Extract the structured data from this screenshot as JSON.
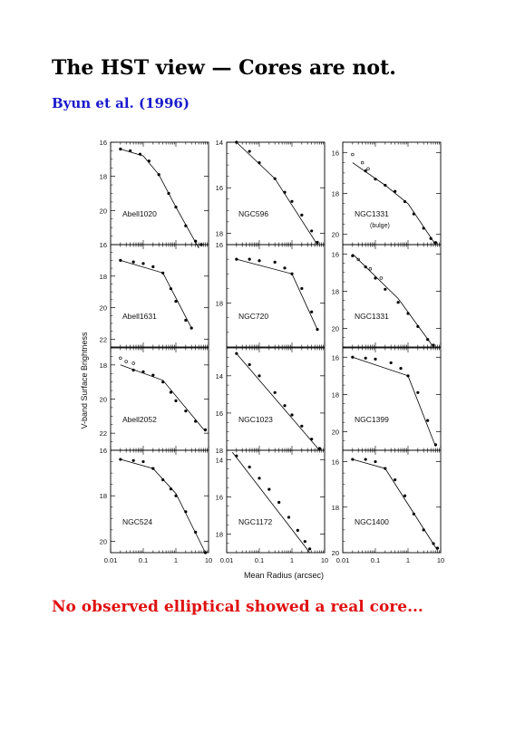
{
  "page": {
    "title": "The HST view — Cores are not.",
    "subtitle": "Byun et al. (1996)",
    "footer": "No observed elliptical showed a real core...",
    "colors": {
      "title": "#000000",
      "subtitle": "#1a1acc",
      "footer": "#e01010"
    }
  },
  "chart_data": {
    "type": "scatter",
    "ylabel": "V-band Surface Brightness",
    "xlabel": "Mean Radius (arcsec)",
    "x_scale": "log",
    "xlim": [
      0.01,
      10
    ],
    "x_ticks": [
      "0.01",
      "0.1",
      "1",
      "10"
    ],
    "y_inverted": true,
    "grid": false,
    "panels": [
      {
        "label": "Abell1020",
        "sublabel": "",
        "ylim": [
          16,
          22
        ],
        "yticks": [
          "16",
          "18",
          "20"
        ],
        "profile": [
          [
            0.02,
            16.4
          ],
          [
            0.04,
            16.5
          ],
          [
            0.08,
            16.7
          ],
          [
            0.15,
            17.1
          ],
          [
            0.3,
            17.9
          ],
          [
            0.6,
            19.0
          ],
          [
            1.0,
            19.8
          ],
          [
            2.0,
            20.9
          ],
          [
            4.0,
            21.8
          ],
          [
            6.0,
            22.0
          ]
        ],
        "fit": [
          [
            0.02,
            16.4
          ],
          [
            0.1,
            16.8
          ],
          [
            0.3,
            17.9
          ],
          [
            1.0,
            19.8
          ],
          [
            5.0,
            22.2
          ]
        ],
        "outliers": []
      },
      {
        "label": "NGC596",
        "sublabel": "",
        "ylim": [
          14,
          18.5
        ],
        "yticks": [
          "14",
          "16",
          "18"
        ],
        "profile": [
          [
            0.02,
            14.0
          ],
          [
            0.05,
            14.4
          ],
          [
            0.1,
            14.9
          ],
          [
            0.3,
            15.6
          ],
          [
            0.6,
            16.2
          ],
          [
            1.0,
            16.6
          ],
          [
            2.0,
            17.2
          ],
          [
            4.0,
            17.9
          ],
          [
            6.0,
            18.4
          ]
        ],
        "fit": [
          [
            0.02,
            14.0
          ],
          [
            0.3,
            15.6
          ],
          [
            6.0,
            18.5
          ]
        ],
        "outliers": []
      },
      {
        "label": "NGC1331",
        "sublabel": "(bulge)",
        "ylim": [
          15.5,
          20.5
        ],
        "yticks": [
          "16",
          "18",
          "20"
        ],
        "profile": [
          [
            0.05,
            16.9
          ],
          [
            0.1,
            17.3
          ],
          [
            0.2,
            17.6
          ],
          [
            0.4,
            17.9
          ],
          [
            0.8,
            18.4
          ],
          [
            1.5,
            19.0
          ],
          [
            3.0,
            19.7
          ],
          [
            5.0,
            20.2
          ],
          [
            7.0,
            20.4
          ]
        ],
        "fit": [
          [
            0.02,
            16.5
          ],
          [
            0.2,
            17.6
          ],
          [
            1.0,
            18.5
          ],
          [
            7.0,
            20.5
          ]
        ],
        "outliers": [
          [
            0.02,
            16.1
          ],
          [
            0.04,
            16.5
          ],
          [
            0.06,
            16.8
          ]
        ]
      },
      {
        "label": "Abell1631",
        "sublabel": "",
        "ylim": [
          16,
          22.5
        ],
        "yticks": [
          "16",
          "18",
          "20",
          "22"
        ],
        "profile": [
          [
            0.02,
            17.0
          ],
          [
            0.05,
            17.1
          ],
          [
            0.1,
            17.2
          ],
          [
            0.2,
            17.4
          ],
          [
            0.4,
            17.8
          ],
          [
            0.7,
            18.8
          ],
          [
            1.0,
            19.6
          ],
          [
            2.0,
            20.8
          ],
          [
            3.0,
            21.3
          ]
        ],
        "fit": [
          [
            0.02,
            17.0
          ],
          [
            0.4,
            17.8
          ],
          [
            3.0,
            21.3
          ]
        ],
        "outliers": []
      },
      {
        "label": "NGC720",
        "sublabel": "",
        "ylim": [
          16,
          19.5
        ],
        "yticks": [
          "16",
          "18"
        ],
        "profile": [
          [
            0.02,
            16.5
          ],
          [
            0.05,
            16.5
          ],
          [
            0.1,
            16.55
          ],
          [
            0.3,
            16.6
          ],
          [
            0.6,
            16.8
          ],
          [
            1.0,
            17.0
          ],
          [
            2.0,
            17.5
          ],
          [
            4.0,
            18.3
          ],
          [
            6.0,
            18.9
          ]
        ],
        "fit": [
          [
            0.02,
            16.5
          ],
          [
            1.0,
            17.0
          ],
          [
            6.0,
            18.9
          ]
        ],
        "outliers": []
      },
      {
        "label": "NGC1331",
        "sublabel": "",
        "ylim": [
          15.5,
          21
        ],
        "yticks": [
          "16",
          "18",
          "20"
        ],
        "profile": [
          [
            0.02,
            16.1
          ],
          [
            0.05,
            16.7
          ],
          [
            0.1,
            17.3
          ],
          [
            0.2,
            17.9
          ],
          [
            0.5,
            18.6
          ],
          [
            1.0,
            19.2
          ],
          [
            2.0,
            19.9
          ],
          [
            4.0,
            20.6
          ],
          [
            6.0,
            20.9
          ]
        ],
        "fit": [
          [
            0.02,
            16.0
          ],
          [
            0.5,
            18.4
          ],
          [
            6.0,
            21.0
          ]
        ],
        "outliers": [
          [
            0.03,
            16.3
          ],
          [
            0.07,
            16.8
          ],
          [
            0.15,
            17.3
          ]
        ]
      },
      {
        "label": "Abell2052",
        "sublabel": "",
        "ylim": [
          17,
          23
        ],
        "yticks": [
          "18",
          "20",
          "22"
        ],
        "profile": [
          [
            0.05,
            18.3
          ],
          [
            0.1,
            18.4
          ],
          [
            0.2,
            18.6
          ],
          [
            0.4,
            19.0
          ],
          [
            0.7,
            19.6
          ],
          [
            1.0,
            20.1
          ],
          [
            2.0,
            20.7
          ],
          [
            4.0,
            21.3
          ],
          [
            8.0,
            21.8
          ]
        ],
        "fit": [
          [
            0.02,
            18.0
          ],
          [
            0.4,
            18.9
          ],
          [
            8.0,
            21.9
          ]
        ],
        "outliers": [
          [
            0.02,
            17.6
          ],
          [
            0.03,
            17.8
          ],
          [
            0.05,
            17.9
          ]
        ]
      },
      {
        "label": "NGC1023",
        "sublabel": "",
        "ylim": [
          12.5,
          18
        ],
        "yticks": [
          "14",
          "16",
          "18"
        ],
        "profile": [
          [
            0.02,
            12.8
          ],
          [
            0.05,
            13.4
          ],
          [
            0.1,
            14.0
          ],
          [
            0.3,
            14.9
          ],
          [
            0.6,
            15.6
          ],
          [
            1.0,
            16.1
          ],
          [
            2.0,
            16.7
          ],
          [
            4.0,
            17.4
          ],
          [
            7.0,
            17.9
          ]
        ],
        "fit": [
          [
            0.02,
            12.8
          ],
          [
            7.0,
            18.0
          ]
        ],
        "outliers": []
      },
      {
        "label": "NGC1399",
        "sublabel": "",
        "ylim": [
          15.5,
          21
        ],
        "yticks": [
          "16",
          "18",
          "20"
        ],
        "profile": [
          [
            0.02,
            16.0
          ],
          [
            0.05,
            16.05
          ],
          [
            0.1,
            16.1
          ],
          [
            0.3,
            16.3
          ],
          [
            0.6,
            16.6
          ],
          [
            1.0,
            17.0
          ],
          [
            2.0,
            17.9
          ],
          [
            4.0,
            19.4
          ],
          [
            7.0,
            20.7
          ]
        ],
        "fit": [
          [
            0.02,
            16.0
          ],
          [
            1.0,
            17.0
          ],
          [
            7.0,
            20.8
          ]
        ],
        "outliers": []
      },
      {
        "label": "NGC524",
        "sublabel": "",
        "ylim": [
          16,
          20.5
        ],
        "yticks": [
          "16",
          "18",
          "20"
        ],
        "profile": [
          [
            0.02,
            16.4
          ],
          [
            0.05,
            16.45
          ],
          [
            0.1,
            16.5
          ],
          [
            0.2,
            16.8
          ],
          [
            0.4,
            17.3
          ],
          [
            0.7,
            17.7
          ],
          [
            1.0,
            18.0
          ],
          [
            2.0,
            18.7
          ],
          [
            4.0,
            19.6
          ],
          [
            8.0,
            20.5
          ]
        ],
        "fit": [
          [
            0.02,
            16.4
          ],
          [
            0.2,
            16.8
          ],
          [
            1.0,
            17.9
          ],
          [
            8.0,
            20.5
          ]
        ],
        "outliers": []
      },
      {
        "label": "NGC1172",
        "sublabel": "",
        "ylim": [
          13.5,
          19
        ],
        "yticks": [
          "14",
          "16",
          "18"
        ],
        "profile": [
          [
            0.02,
            13.8
          ],
          [
            0.05,
            14.4
          ],
          [
            0.1,
            15.0
          ],
          [
            0.2,
            15.6
          ],
          [
            0.4,
            16.3
          ],
          [
            0.8,
            17.1
          ],
          [
            1.5,
            17.8
          ],
          [
            2.5,
            18.4
          ],
          [
            3.5,
            18.8
          ]
        ],
        "fit": [
          [
            0.015,
            13.6
          ],
          [
            3.5,
            19.0
          ]
        ],
        "outliers": []
      },
      {
        "label": "NGC1400",
        "sublabel": "",
        "ylim": [
          15.5,
          20
        ],
        "yticks": [
          "16",
          "18",
          "20"
        ],
        "profile": [
          [
            0.02,
            15.9
          ],
          [
            0.05,
            15.9
          ],
          [
            0.1,
            16.0
          ],
          [
            0.2,
            16.3
          ],
          [
            0.4,
            16.8
          ],
          [
            0.8,
            17.5
          ],
          [
            1.5,
            18.3
          ],
          [
            3.0,
            19.0
          ],
          [
            6.0,
            19.6
          ],
          [
            8.0,
            19.8
          ]
        ],
        "fit": [
          [
            0.02,
            15.9
          ],
          [
            0.2,
            16.3
          ],
          [
            8.0,
            19.9
          ]
        ],
        "outliers": []
      }
    ]
  }
}
